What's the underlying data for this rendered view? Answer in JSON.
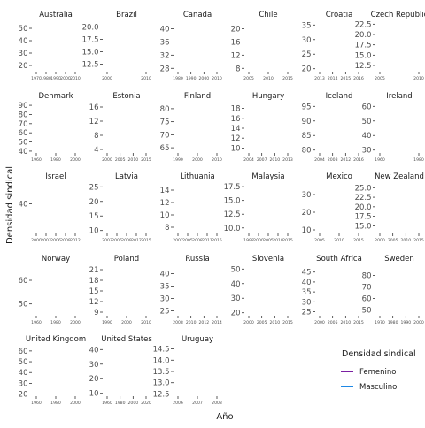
{
  "chart_data": {
    "type": "line",
    "xlabel": "Año",
    "ylabel": "Densidad sindical",
    "legend": {
      "title": "Densidad sindical",
      "position": "right",
      "entries": [
        {
          "name": "Femenino",
          "color": "#7b1fa2"
        },
        {
          "name": "Masculino",
          "color": "#1e88e5"
        }
      ]
    },
    "grid": false,
    "panels": [
      {
        "name": "Australia",
        "yticks": [
          "50",
          "40",
          "30",
          "20"
        ],
        "xticks": [
          "1970",
          "1980",
          "1990",
          "2000",
          "2010"
        ],
        "ylim": [
          15,
          55
        ]
      },
      {
        "name": "Brazil",
        "yticks": [
          "20.0",
          "17.5",
          "15.0",
          "12.5"
        ],
        "xticks": [
          "2000",
          "2010"
        ],
        "ylim": [
          11,
          21
        ]
      },
      {
        "name": "Canada",
        "yticks": [
          "40",
          "36",
          "32",
          "28"
        ],
        "xticks": [
          "1980",
          "1990",
          "2000",
          "2010"
        ],
        "ylim": [
          27,
          42
        ]
      },
      {
        "name": "Chile",
        "yticks": [
          "20",
          "16",
          "12",
          "8"
        ],
        "xticks": [
          "2005",
          "2010",
          "2015"
        ],
        "ylim": [
          7,
          22
        ]
      },
      {
        "name": "Croatia",
        "yticks": [
          "35",
          "30",
          "25",
          "20"
        ],
        "xticks": [
          "2013",
          "2014",
          "2015",
          "2016"
        ],
        "ylim": [
          19,
          36
        ]
      },
      {
        "name": "Czech Republic",
        "yticks": [
          "22.5",
          "20.0",
          "17.5",
          "15.0",
          "12.5"
        ],
        "xticks": [
          "2005",
          "2010"
        ],
        "ylim": [
          11,
          23
        ]
      },
      {
        "name": "Denmark",
        "yticks": [
          "90",
          "80",
          "70",
          "60",
          "50",
          "40"
        ],
        "xticks": [
          "1960",
          "1980",
          "2000"
        ],
        "ylim": [
          38,
          92
        ]
      },
      {
        "name": "Estonia",
        "yticks": [
          "16",
          "12",
          "8",
          "4"
        ],
        "xticks": [
          "2000",
          "2005",
          "2010",
          "2015"
        ],
        "ylim": [
          3,
          17
        ]
      },
      {
        "name": "Finland",
        "yticks": [
          "80",
          "75",
          "70",
          "65"
        ],
        "xticks": [
          "1990",
          "2000",
          "2010"
        ],
        "ylim": [
          63,
          82
        ]
      },
      {
        "name": "Hungary",
        "yticks": [
          "18",
          "16",
          "14",
          "12",
          "10"
        ],
        "xticks": [
          "2004",
          "2007",
          "2010",
          "2013"
        ],
        "ylim": [
          9,
          19
        ]
      },
      {
        "name": "Iceland",
        "yticks": [
          "95",
          "90",
          "85",
          "80"
        ],
        "xticks": [
          "2004",
          "2008",
          "2012",
          "2016"
        ],
        "ylim": [
          79,
          96
        ]
      },
      {
        "name": "Ireland",
        "yticks": [
          "60",
          "50",
          "40",
          "30"
        ],
        "xticks": [
          "1960",
          "1980"
        ],
        "ylim": [
          28,
          62
        ]
      },
      {
        "name": "Israel",
        "yticks": [
          "40"
        ],
        "xticks": [
          "2000",
          "2003",
          "2006",
          "2009",
          "2012"
        ],
        "ylim": [
          28,
          48
        ]
      },
      {
        "name": "Latvia",
        "yticks": [
          "25",
          "20",
          "15",
          "10"
        ],
        "xticks": [
          "2003",
          "2006",
          "2009",
          "2012",
          "2015"
        ],
        "ylim": [
          9,
          26
        ]
      },
      {
        "name": "Lithuania",
        "yticks": [
          "14",
          "12",
          "10",
          "8"
        ],
        "xticks": [
          "2002",
          "2005",
          "2008",
          "2011",
          "2015"
        ],
        "ylim": [
          7,
          15
        ]
      },
      {
        "name": "Malaysia",
        "yticks": [
          "17.5",
          "15.0",
          "12.5",
          "10.0"
        ],
        "xticks": [
          "1998",
          "2000",
          "2005",
          "2010",
          "2015"
        ],
        "ylim": [
          9,
          18
        ]
      },
      {
        "name": "Mexico",
        "yticks": [
          "30",
          "20",
          "10"
        ],
        "xticks": [
          "2005",
          "2010",
          "2015"
        ],
        "ylim": [
          8,
          36
        ]
      },
      {
        "name": "New Zealand",
        "yticks": [
          "25.0",
          "22.5",
          "20.0",
          "17.5",
          "15.0"
        ],
        "xticks": [
          "2000",
          "2005",
          "2010",
          "2015"
        ],
        "ylim": [
          13,
          26
        ]
      },
      {
        "name": "Norway",
        "yticks": [
          "60",
          "50"
        ],
        "xticks": [
          "1960",
          "1980",
          "2000"
        ],
        "ylim": [
          45,
          66
        ]
      },
      {
        "name": "Poland",
        "yticks": [
          "21",
          "18",
          "15",
          "12",
          "9"
        ],
        "xticks": [
          "1990",
          "2000",
          "2010"
        ],
        "ylim": [
          8,
          22
        ]
      },
      {
        "name": "Russia",
        "yticks": [
          "40",
          "35",
          "30",
          "25"
        ],
        "xticks": [
          "2008",
          "2010",
          "2012",
          "2014"
        ],
        "ylim": [
          23,
          43
        ]
      },
      {
        "name": "Slovenia",
        "yticks": [
          "50",
          "40",
          "30",
          "20"
        ],
        "xticks": [
          "2000",
          "2005",
          "2010",
          "2015"
        ],
        "ylim": [
          18,
          52
        ]
      },
      {
        "name": "South Africa",
        "yticks": [
          "45",
          "40",
          "35",
          "30",
          "25"
        ],
        "xticks": [
          "2000",
          "2005",
          "2010",
          "2015"
        ],
        "ylim": [
          23,
          48
        ]
      },
      {
        "name": "Sweden",
        "yticks": [
          "80",
          "70",
          "60",
          "50"
        ],
        "xticks": [
          "1970",
          "1980",
          "1990",
          "2000"
        ],
        "ylim": [
          45,
          88
        ]
      },
      {
        "name": "United Kingdom",
        "yticks": [
          "60",
          "50",
          "40",
          "30",
          "20"
        ],
        "xticks": [
          "1960",
          "1980",
          "2000"
        ],
        "ylim": [
          18,
          64
        ]
      },
      {
        "name": "United States",
        "yticks": [
          "40",
          "30",
          "20",
          "10"
        ],
        "xticks": [
          "1960",
          "1980",
          "2000",
          "2020"
        ],
        "ylim": [
          8,
          42
        ]
      },
      {
        "name": "Uruguay",
        "yticks": [
          "14.5",
          "14.0",
          "13.5",
          "13.0",
          "12.5"
        ],
        "xticks": [
          "2006",
          "2007",
          "2008"
        ],
        "ylim": [
          12.4,
          14.6
        ]
      }
    ]
  }
}
